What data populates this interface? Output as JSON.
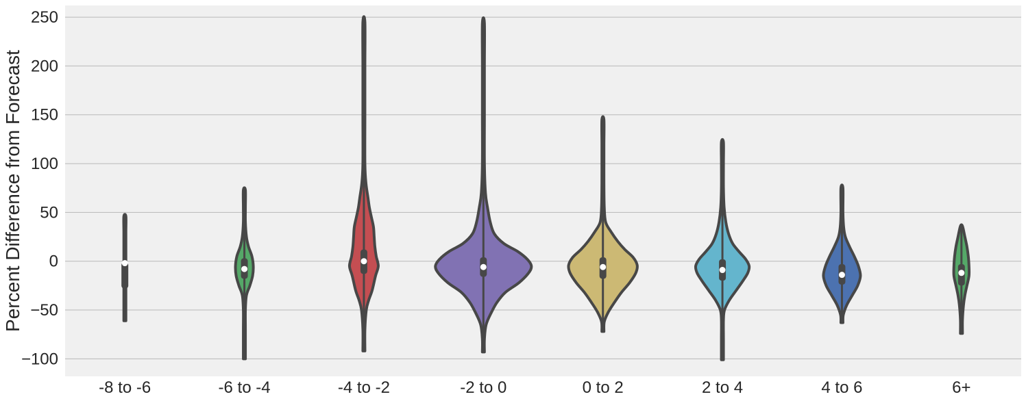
{
  "chart_data": {
    "type": "violin",
    "title": "",
    "xlabel": "",
    "ylabel": "Percent Difference from Forecast",
    "ylim": [
      -118,
      262
    ],
    "yticks": [
      -100,
      -50,
      0,
      50,
      100,
      150,
      200,
      250
    ],
    "ytick_labels": [
      "−100",
      "−50",
      "0",
      "50",
      "100",
      "150",
      "200",
      "250"
    ],
    "grid": "horizontal",
    "categories": [
      "-8 to -6",
      "-6 to -4",
      "-4 to -2",
      "-2 to 0",
      "0 to 2",
      "2 to 4",
      "4 to 6",
      "6+"
    ],
    "colors": [
      "#dd8452",
      "#55a868",
      "#c44e52",
      "#8172b3",
      "#ccb974",
      "#64b5cd",
      "#4c72b0",
      "#55a868"
    ],
    "violins": [
      {
        "category": "-8 to -6",
        "min": -61,
        "max": 46,
        "q1": -28,
        "median": -2,
        "q3": -1,
        "profile": [
          [
            -61,
            0.2
          ],
          [
            -45,
            0.5
          ],
          [
            -30,
            0.9
          ],
          [
            -20,
            1.1
          ],
          [
            -5,
            1.1
          ],
          [
            10,
            0.9
          ],
          [
            30,
            0.6
          ],
          [
            46,
            0.2
          ]
        ]
      },
      {
        "category": "-6 to -4",
        "min": -100,
        "max": 73,
        "q1": -18,
        "median": -8,
        "q3": 3,
        "profile": [
          [
            -100,
            0.2
          ],
          [
            -70,
            0.7
          ],
          [
            -50,
            1.2
          ],
          [
            -35,
            3
          ],
          [
            -25,
            8
          ],
          [
            -15,
            12
          ],
          [
            -5,
            13
          ],
          [
            5,
            11
          ],
          [
            15,
            6
          ],
          [
            25,
            3
          ],
          [
            40,
            1.4
          ],
          [
            55,
            0.8
          ],
          [
            73,
            0.3
          ]
        ]
      },
      {
        "category": "-4 to -2",
        "min": -92,
        "max": 245,
        "q1": -13,
        "median": 0,
        "q3": 12,
        "profile": [
          [
            -92,
            0.3
          ],
          [
            -70,
            1.5
          ],
          [
            -50,
            3.5
          ],
          [
            -40,
            7
          ],
          [
            -30,
            12
          ],
          [
            -15,
            17
          ],
          [
            -5,
            21
          ],
          [
            5,
            18
          ],
          [
            15,
            16
          ],
          [
            25,
            15
          ],
          [
            35,
            14
          ],
          [
            45,
            11
          ],
          [
            55,
            8
          ],
          [
            65,
            6
          ],
          [
            80,
            3
          ],
          [
            100,
            1.5
          ],
          [
            150,
            1
          ],
          [
            200,
            0.8
          ],
          [
            245,
            0.3
          ]
        ]
      },
      {
        "category": "-2 to 0",
        "min": -93,
        "max": 244,
        "q1": -16,
        "median": -6,
        "q3": 4,
        "profile": [
          [
            -93,
            0.3
          ],
          [
            -80,
            1.2
          ],
          [
            -65,
            4
          ],
          [
            -52,
            12
          ],
          [
            -42,
            20
          ],
          [
            -32,
            32
          ],
          [
            -22,
            52
          ],
          [
            -12,
            66
          ],
          [
            -5,
            70
          ],
          [
            2,
            64
          ],
          [
            10,
            50
          ],
          [
            18,
            30
          ],
          [
            28,
            16
          ],
          [
            40,
            10
          ],
          [
            55,
            6
          ],
          [
            70,
            3
          ],
          [
            100,
            1.5
          ],
          [
            150,
            1
          ],
          [
            200,
            0.8
          ],
          [
            244,
            0.3
          ]
        ]
      },
      {
        "category": "0 to 2",
        "min": -72,
        "max": 145,
        "q1": -18,
        "median": -6,
        "q3": 4,
        "profile": [
          [
            -72,
            0.3
          ],
          [
            -62,
            2
          ],
          [
            -52,
            8
          ],
          [
            -42,
            17
          ],
          [
            -32,
            27
          ],
          [
            -22,
            39
          ],
          [
            -12,
            48
          ],
          [
            -4,
            50
          ],
          [
            4,
            44
          ],
          [
            12,
            32
          ],
          [
            20,
            22
          ],
          [
            30,
            12
          ],
          [
            40,
            4
          ],
          [
            55,
            2
          ],
          [
            80,
            1.5
          ],
          [
            100,
            1.5
          ],
          [
            120,
            1
          ],
          [
            145,
            0.3
          ]
        ]
      },
      {
        "category": "2 to 4",
        "min": -101,
        "max": 122,
        "q1": -20,
        "median": -9,
        "q3": 2,
        "profile": [
          [
            -101,
            0.2
          ],
          [
            -80,
            0.8
          ],
          [
            -60,
            1.5
          ],
          [
            -50,
            3
          ],
          [
            -40,
            10
          ],
          [
            -30,
            20
          ],
          [
            -20,
            30
          ],
          [
            -12,
            37
          ],
          [
            -5,
            39
          ],
          [
            2,
            34
          ],
          [
            10,
            24
          ],
          [
            18,
            15
          ],
          [
            28,
            9
          ],
          [
            40,
            5
          ],
          [
            55,
            2.5
          ],
          [
            75,
            1.5
          ],
          [
            100,
            1
          ],
          [
            122,
            0.3
          ]
        ]
      },
      {
        "category": "4 to 6",
        "min": -63,
        "max": 75,
        "q1": -24,
        "median": -14,
        "q3": -3,
        "profile": [
          [
            -63,
            0.3
          ],
          [
            -55,
            2
          ],
          [
            -45,
            7
          ],
          [
            -35,
            15
          ],
          [
            -25,
            23
          ],
          [
            -15,
            27
          ],
          [
            -5,
            24
          ],
          [
            5,
            18
          ],
          [
            15,
            11
          ],
          [
            25,
            5
          ],
          [
            35,
            2.5
          ],
          [
            50,
            1.5
          ],
          [
            75,
            0.3
          ]
        ]
      },
      {
        "category": "6+",
        "min": -74,
        "max": 36,
        "q1": -25,
        "median": -12,
        "q3": -3,
        "profile": [
          [
            -74,
            0.3
          ],
          [
            -60,
            1.5
          ],
          [
            -45,
            3
          ],
          [
            -35,
            5
          ],
          [
            -25,
            8
          ],
          [
            -15,
            11
          ],
          [
            -5,
            11
          ],
          [
            5,
            10
          ],
          [
            15,
            8
          ],
          [
            25,
            5
          ],
          [
            36,
            0.5
          ]
        ]
      }
    ]
  }
}
